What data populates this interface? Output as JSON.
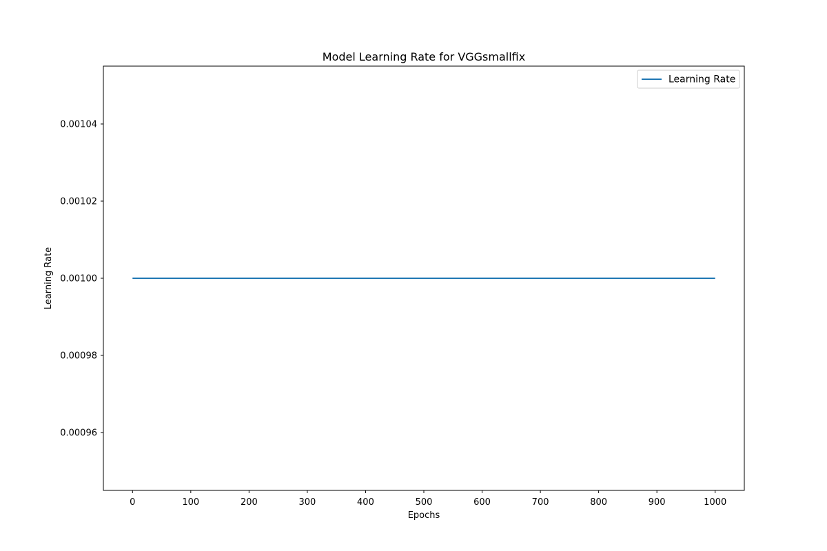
{
  "chart_data": {
    "type": "line",
    "title": "Model Learning Rate for VGGsmallfix",
    "xlabel": "Epochs",
    "ylabel": "Learning Rate",
    "xlim": [
      -50,
      1050
    ],
    "ylim": [
      0.000945,
      0.001055
    ],
    "xticks": [
      0,
      100,
      200,
      300,
      400,
      500,
      600,
      700,
      800,
      900,
      1000
    ],
    "xtick_labels": [
      "0",
      "100",
      "200",
      "300",
      "400",
      "500",
      "600",
      "700",
      "800",
      "900",
      "1000"
    ],
    "yticks": [
      0.00096,
      0.00098,
      0.001,
      0.00102,
      0.00104
    ],
    "ytick_labels": [
      "0.00096",
      "0.00098",
      "0.00100",
      "0.00102",
      "0.00104"
    ],
    "grid": false,
    "legend_position": "top-right",
    "series": [
      {
        "name": "Learning Rate",
        "color": "#1f77b4",
        "x": [
          0,
          1000
        ],
        "y": [
          0.001,
          0.001
        ]
      }
    ]
  }
}
